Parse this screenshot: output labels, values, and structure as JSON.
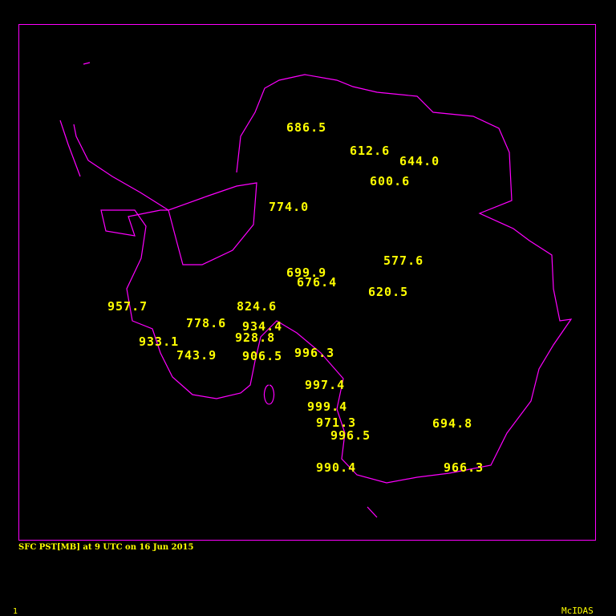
{
  "map": {
    "region": "Antarctica",
    "coastline_color": "#ff00ff",
    "label_color": "#ffff00",
    "stations": [
      {
        "value": "686.5"
      },
      {
        "value": "612.6"
      },
      {
        "value": "644.0"
      },
      {
        "value": "600.6"
      },
      {
        "value": "774.0"
      },
      {
        "value": "577.6"
      },
      {
        "value": "699.9"
      },
      {
        "value": "676.4"
      },
      {
        "value": "620.5"
      },
      {
        "value": "957.7"
      },
      {
        "value": "824.6"
      },
      {
        "value": "778.6"
      },
      {
        "value": "934.4"
      },
      {
        "value": "933.1"
      },
      {
        "value": "928.8"
      },
      {
        "value": "743.9"
      },
      {
        "value": "906.5"
      },
      {
        "value": "996.3"
      },
      {
        "value": "997.4"
      },
      {
        "value": "999.4"
      },
      {
        "value": "971.3"
      },
      {
        "value": "694.8"
      },
      {
        "value": "996.5"
      },
      {
        "value": "990.4"
      },
      {
        "value": "966.3"
      }
    ]
  },
  "caption": "SFC PST[MB] at 9 UTC on 16 Jun 2015",
  "frame_number": "1",
  "brand": "McIDAS"
}
